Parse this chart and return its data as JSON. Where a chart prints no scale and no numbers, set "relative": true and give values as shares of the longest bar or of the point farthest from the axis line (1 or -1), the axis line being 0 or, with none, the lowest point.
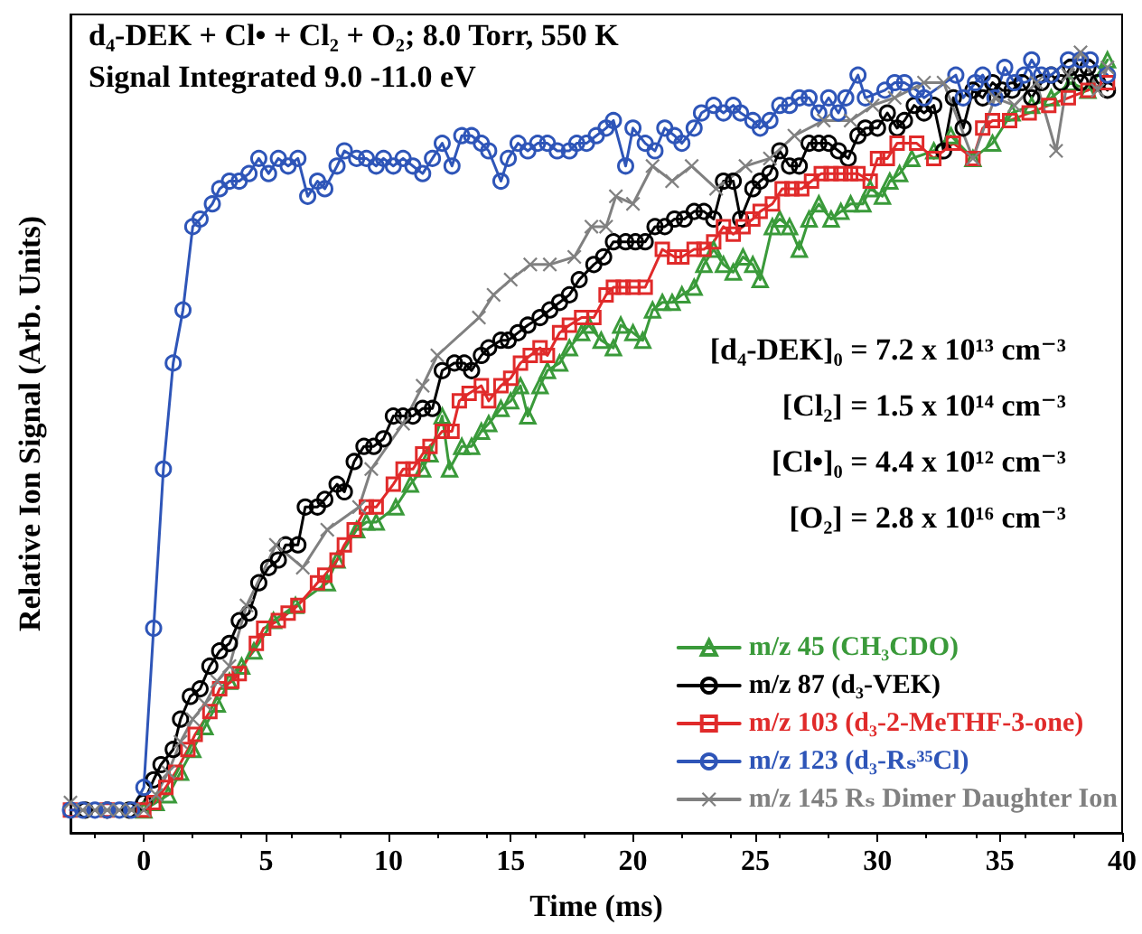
{
  "chart_data": {
    "type": "line",
    "title": "d₄-DEK + Cl• + Cl₂ + O₂; 8.0 Torr, 550 K",
    "subtitle": "Signal Integrated 9.0 -11.0 eV",
    "xlabel": "Time (ms)",
    "ylabel": "Relative Ion Signal (Arb. Units)",
    "relative": true,
    "xlim": [
      -3,
      40
    ],
    "xticks": [
      0,
      5,
      10,
      15,
      20,
      25,
      30,
      35,
      40
    ],
    "legend": "bottom right",
    "grid": false,
    "line_style": "solid",
    "annotations": [
      "[d₄-DEK]₀ = 7.2 x 10¹³ cm⁻³",
      "[Cl₂] = 1.5 x 10¹⁴ cm⁻³",
      "[Cl•]₀ = 4.4 x 10¹² cm⁻³",
      "[O₂] = 2.8 x 10¹⁶ cm⁻³"
    ],
    "series": [
      {
        "name": "m/z 45 (CH₃CDO)",
        "color": "#3a9a3a",
        "marker": "triangle",
        "x": [
          0,
          0.5,
          1,
          1.5,
          2,
          2.5,
          3,
          3.5,
          4,
          4.5,
          5.3,
          6.2,
          7.5,
          7.9,
          8.7,
          9.1,
          9.5,
          10.3,
          10.9,
          11.4,
          11.7,
          12.2,
          12.5,
          13,
          13.4,
          13.8,
          14.1,
          14.6,
          15,
          15.4,
          15.7,
          16.2,
          16.5,
          17,
          17.4,
          17.9,
          18.2,
          18.7,
          19.2,
          19.5,
          20,
          20.4,
          20.8,
          21.2,
          21.6,
          22,
          22.5,
          22.9,
          23.3,
          23.7,
          24.1,
          24.5,
          24.9,
          25.2,
          25.7,
          26,
          26.4,
          26.8,
          27.2,
          27.6,
          28.1,
          28.5,
          28.9,
          29.4,
          29.7,
          30.2,
          30.5,
          30.9,
          31.4,
          32.3,
          33,
          33.9,
          34.7,
          35.5,
          36.3,
          37.1,
          37.9,
          38.6,
          39.4
        ],
        "values": [
          0,
          0.01,
          0.02,
          0.05,
          0.08,
          0.11,
          0.14,
          0.17,
          0.19,
          0.21,
          0.25,
          0.27,
          0.3,
          0.33,
          0.37,
          0.38,
          0.38,
          0.4,
          0.43,
          0.45,
          0.47,
          0.52,
          0.45,
          0.48,
          0.48,
          0.5,
          0.51,
          0.53,
          0.54,
          0.56,
          0.52,
          0.56,
          0.58,
          0.59,
          0.61,
          0.63,
          0.64,
          0.62,
          0.61,
          0.64,
          0.63,
          0.62,
          0.66,
          0.67,
          0.67,
          0.68,
          0.69,
          0.72,
          0.74,
          0.72,
          0.71,
          0.73,
          0.72,
          0.7,
          0.77,
          0.78,
          0.77,
          0.74,
          0.78,
          0.8,
          0.78,
          0.79,
          0.8,
          0.8,
          0.82,
          0.81,
          0.83,
          0.84,
          0.86,
          0.87,
          0.89,
          0.86,
          0.88,
          0.92,
          0.93,
          0.94,
          0.96,
          0.95,
          0.99
        ]
      },
      {
        "name": "m/z 87 (d₃-VEK)",
        "color": "#000000",
        "marker": "circle",
        "x": [
          -2.4,
          -1.5,
          -0.6,
          0,
          0.4,
          0.7,
          1.2,
          1.5,
          1.9,
          2.3,
          2.7,
          3.1,
          3.5,
          3.9,
          4.3,
          4.7,
          5.1,
          5.5,
          5.8,
          6.3,
          6.6,
          7.1,
          7.4,
          7.9,
          8.2,
          8.6,
          9,
          9.4,
          9.8,
          10.2,
          10.6,
          11,
          11.4,
          11.8,
          12.2,
          12.7,
          13.1,
          13.4,
          13.8,
          14.1,
          14.6,
          14.9,
          15.3,
          15.7,
          16.2,
          16.6,
          17,
          17.4,
          17.8,
          18.4,
          18.8,
          19.2,
          19.7,
          20.1,
          20.5,
          20.9,
          21.3,
          21.7,
          22.1,
          22.5,
          22.9,
          23.3,
          23.7,
          24.1,
          24.4,
          24.9,
          25.2,
          25.6,
          26,
          26.4,
          26.8,
          27.2,
          27.6,
          28,
          28.4,
          28.8,
          29.2,
          29.5,
          30,
          30.4,
          30.8,
          31.1,
          31.5,
          31.9,
          32.3,
          32.7,
          33.1,
          33.5,
          33.9,
          34.3,
          34.7,
          35.1,
          35.5,
          35.9,
          36.3,
          36.7,
          37.1,
          37.5,
          37.9,
          38.3,
          38.6,
          39,
          39.4
        ],
        "values": [
          0,
          0,
          0,
          0.01,
          0.04,
          0.06,
          0.08,
          0.12,
          0.15,
          0.16,
          0.19,
          0.21,
          0.22,
          0.25,
          0.26,
          0.3,
          0.32,
          0.33,
          0.35,
          0.35,
          0.4,
          0.4,
          0.41,
          0.43,
          0.42,
          0.46,
          0.48,
          0.48,
          0.49,
          0.52,
          0.52,
          0.52,
          0.53,
          0.53,
          0.58,
          0.59,
          0.59,
          0.58,
          0.6,
          0.61,
          0.62,
          0.62,
          0.63,
          0.64,
          0.65,
          0.66,
          0.67,
          0.68,
          0.7,
          0.72,
          0.73,
          0.75,
          0.75,
          0.75,
          0.75,
          0.77,
          0.77,
          0.78,
          0.78,
          0.79,
          0.79,
          0.78,
          0.83,
          0.83,
          0.78,
          0.82,
          0.83,
          0.84,
          0.87,
          0.85,
          0.85,
          0.88,
          0.88,
          0.88,
          0.87,
          0.86,
          0.89,
          0.9,
          0.9,
          0.92,
          0.9,
          0.91,
          0.93,
          0.92,
          0.93,
          0.87,
          0.94,
          0.9,
          0.95,
          0.94,
          0.96,
          0.95,
          0.95,
          0.96,
          0.94,
          0.96,
          0.97,
          0.96,
          0.98,
          0.96,
          0.98,
          0.96,
          0.95
        ]
      },
      {
        "name": "m/z 103 (d₃-2-MeTHF-3-one)",
        "color": "#e02a2a",
        "marker": "square",
        "x": [
          -3,
          -1.5,
          0,
          0.4,
          0.9,
          1.3,
          1.8,
          2.1,
          2.7,
          3.1,
          3.6,
          3.9,
          4.6,
          4.9,
          5.5,
          5.9,
          6.3,
          7.1,
          7.4,
          7.9,
          8.2,
          8.6,
          9.1,
          9.5,
          10.2,
          10.6,
          11,
          11.4,
          11.7,
          12.2,
          12.6,
          12.9,
          13.3,
          13.8,
          14.1,
          14.6,
          15,
          15.4,
          15.8,
          16.2,
          16.5,
          17,
          17.4,
          17.9,
          18.4,
          18.9,
          19.2,
          19.6,
          20,
          20.5,
          21.2,
          21.7,
          22,
          22.5,
          22.9,
          23.3,
          23.7,
          24.1,
          24.5,
          24.9,
          25.2,
          25.7,
          26.1,
          26.5,
          26.9,
          27.3,
          27.7,
          28.1,
          28.5,
          28.9,
          29.2,
          29.7,
          30,
          30.4,
          30.8,
          31.6,
          32.3,
          33.1,
          33.9,
          34.3,
          34.7,
          35.4,
          36.2,
          37,
          37.8,
          38.6,
          39.4
        ],
        "values": [
          0,
          0,
          0,
          0.01,
          0.03,
          0.05,
          0.08,
          0.1,
          0.13,
          0.16,
          0.17,
          0.18,
          0.22,
          0.24,
          0.25,
          0.26,
          0.27,
          0.3,
          0.31,
          0.33,
          0.35,
          0.37,
          0.4,
          0.4,
          0.43,
          0.45,
          0.45,
          0.47,
          0.48,
          0.5,
          0.5,
          0.54,
          0.55,
          0.56,
          0.54,
          0.56,
          0.57,
          0.59,
          0.6,
          0.61,
          0.6,
          0.63,
          0.64,
          0.65,
          0.65,
          0.68,
          0.69,
          0.69,
          0.69,
          0.69,
          0.74,
          0.73,
          0.73,
          0.74,
          0.74,
          0.75,
          0.77,
          0.76,
          0.77,
          0.78,
          0.79,
          0.8,
          0.82,
          0.82,
          0.82,
          0.83,
          0.84,
          0.84,
          0.84,
          0.84,
          0.84,
          0.83,
          0.86,
          0.86,
          0.88,
          0.88,
          0.86,
          0.88,
          0.86,
          0.9,
          0.91,
          0.91,
          0.92,
          0.93,
          0.94,
          0.95,
          0.96
        ]
      },
      {
        "name": "m/z 123 (d₃-Rₛ³⁵Cl)",
        "color": "#2e55b8",
        "marker": "circle",
        "x": [
          -3,
          -2.5,
          -2,
          -1.5,
          -1,
          -0.5,
          0,
          0.4,
          0.8,
          1.2,
          1.6,
          2,
          2.3,
          2.8,
          3.1,
          3.5,
          3.9,
          4.3,
          4.7,
          5.1,
          5.5,
          5.9,
          6.3,
          6.7,
          7.1,
          7.4,
          7.9,
          8.2,
          8.7,
          9.1,
          9.5,
          9.8,
          10.2,
          10.6,
          11,
          11.4,
          11.8,
          12.2,
          12.6,
          13,
          13.4,
          13.8,
          14.1,
          14.6,
          14.9,
          15.3,
          15.7,
          16.1,
          16.5,
          16.9,
          17.4,
          17.7,
          18.1,
          18.5,
          18.9,
          19.2,
          19.7,
          20,
          20.5,
          20.9,
          21.3,
          21.7,
          22,
          22.5,
          22.8,
          23.3,
          23.7,
          24.1,
          24.4,
          24.9,
          25.2,
          25.6,
          26,
          26.4,
          26.8,
          27.2,
          27.6,
          28,
          28.4,
          28.7,
          29.2,
          29.5,
          30.3,
          30.7,
          31.1,
          31.6,
          31.9,
          33.2,
          33.5,
          34,
          34.3,
          34.8,
          35.2,
          35.6,
          36,
          36.3,
          36.7,
          37.1,
          37.8,
          38.3,
          38.7,
          39.4
        ],
        "values": [
          0,
          0,
          0,
          0,
          0,
          0,
          0.03,
          0.24,
          0.45,
          0.59,
          0.66,
          0.77,
          0.78,
          0.8,
          0.82,
          0.83,
          0.83,
          0.84,
          0.86,
          0.84,
          0.86,
          0.85,
          0.86,
          0.81,
          0.83,
          0.82,
          0.85,
          0.87,
          0.86,
          0.86,
          0.85,
          0.86,
          0.85,
          0.86,
          0.85,
          0.84,
          0.86,
          0.88,
          0.85,
          0.89,
          0.89,
          0.88,
          0.87,
          0.83,
          0.86,
          0.88,
          0.87,
          0.88,
          0.88,
          0.87,
          0.87,
          0.88,
          0.88,
          0.89,
          0.9,
          0.91,
          0.85,
          0.9,
          0.88,
          0.87,
          0.9,
          0.89,
          0.88,
          0.9,
          0.92,
          0.93,
          0.92,
          0.93,
          0.92,
          0.91,
          0.9,
          0.91,
          0.93,
          0.93,
          0.94,
          0.94,
          0.92,
          0.94,
          0.92,
          0.94,
          0.97,
          0.94,
          0.95,
          0.96,
          0.96,
          0.95,
          0.94,
          0.97,
          0.94,
          0.96,
          0.97,
          0.94,
          0.98,
          0.96,
          0.97,
          0.99,
          0.97,
          0.97,
          0.99,
          0.99,
          0.99,
          0.97
        ]
      },
      {
        "name": "m/z 145 Rₛ Dimer Daughter Ion",
        "color": "#808080",
        "marker": "cross",
        "x": [
          -3,
          -2.5,
          -2,
          -1.5,
          -1,
          -0.5,
          0,
          0.5,
          1,
          1.5,
          2,
          2.5,
          3,
          3.5,
          4.2,
          5.4,
          6.5,
          7.5,
          8.8,
          9.3,
          10.6,
          11.4,
          12,
          13.7,
          14.3,
          15,
          15.8,
          16.6,
          17.6,
          18.3,
          18.9,
          19.3,
          20,
          20.8,
          21.6,
          22.4,
          23.4,
          24.6,
          25.6,
          26.6,
          27.8,
          28.9,
          29.8,
          30.7,
          31.9,
          32.7,
          33.9,
          34.8,
          35.6,
          36.5,
          37.3,
          37.8,
          38.3,
          39,
          39.4
        ],
        "values": [
          0.01,
          0,
          0,
          0,
          0,
          0,
          0,
          0.02,
          0.05,
          0.09,
          0.12,
          0.14,
          0.17,
          0.19,
          0.27,
          0.35,
          0.32,
          0.37,
          0.4,
          0.45,
          0.51,
          0.56,
          0.6,
          0.65,
          0.68,
          0.7,
          0.72,
          0.72,
          0.73,
          0.77,
          0.77,
          0.81,
          0.8,
          0.85,
          0.83,
          0.85,
          0.82,
          0.85,
          0.86,
          0.89,
          0.91,
          0.91,
          0.93,
          0.94,
          0.96,
          0.96,
          0.86,
          0.94,
          0.93,
          0.96,
          0.87,
          0.97,
          1,
          0.95,
          0.98
        ]
      }
    ]
  }
}
